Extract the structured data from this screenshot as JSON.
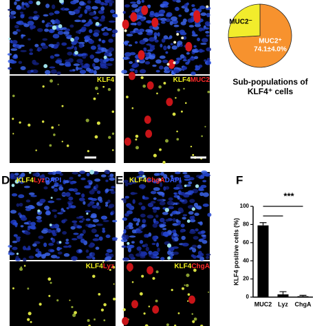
{
  "figure_labels": {
    "d": "D",
    "e": "E",
    "f": "F"
  },
  "image_labels": [
    [
      {
        "text": "KLF4",
        "color": "#f2f020"
      }
    ],
    [
      {
        "text": "KLF4",
        "color": "#f2f020"
      },
      {
        "text": "MUC2",
        "color": "#ff2a2a"
      }
    ],
    [
      {
        "text": "KLF4",
        "color": "#f2f020"
      },
      {
        "text": "Lyz",
        "color": "#ff2a2a"
      },
      {
        "text": "DAPI",
        "color": "#3a5cff"
      }
    ],
    [
      {
        "text": "KLF4",
        "color": "#f2f020"
      },
      {
        "text": "Lyz",
        "color": "#ff2a2a"
      }
    ],
    [
      {
        "text": "KLF4",
        "color": "#f2f020"
      },
      {
        "text": "ChgA",
        "color": "#ff2a2a"
      },
      {
        "text": "DAPI",
        "color": "#3a5cff"
      }
    ],
    [
      {
        "text": "KLF4",
        "color": "#f2f020"
      },
      {
        "text": "ChgA",
        "color": "#ff2a2a"
      }
    ]
  ],
  "chart_data": [
    {
      "type": "pie",
      "title_lines": [
        "Sub-populations of",
        "KLF4⁺ cells"
      ],
      "categories": [
        "MUC2⁻",
        "MUC2⁺"
      ],
      "values": [
        25.9,
        74.1
      ],
      "value_labels": [
        null,
        "74.1±4.0%"
      ],
      "colors": [
        "#f2ec2c",
        "#f7922e"
      ]
    },
    {
      "type": "bar",
      "ylabel": "KLF4 positive cells (%)",
      "categories": [
        "MUC2",
        "Lyz",
        "ChgA"
      ],
      "values": [
        79,
        3,
        1
      ],
      "errors": [
        3,
        3,
        1
      ],
      "color": "#000000",
      "ylim": [
        0,
        100
      ],
      "yticks": [
        0,
        20,
        40,
        60,
        80,
        100
      ],
      "annotation": "***"
    }
  ]
}
